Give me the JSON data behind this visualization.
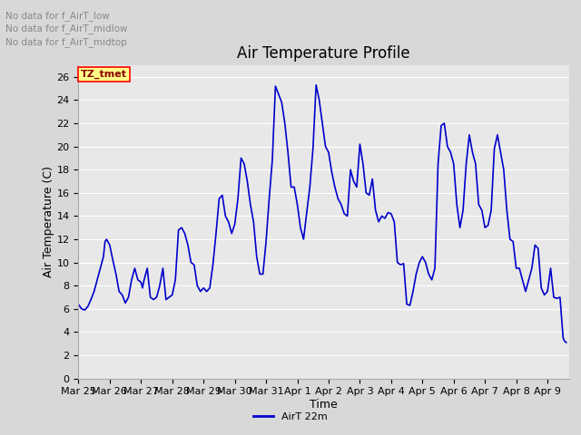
{
  "title": "Air Temperature Profile",
  "xlabel": "Time",
  "ylabel": "Air Temperature (C)",
  "line_color": "#0000cc",
  "line_width": 1.2,
  "background_color": "#d8d8d8",
  "plot_bg_color": "#e8e8e8",
  "ylim": [
    0,
    27
  ],
  "yticks": [
    0,
    2,
    4,
    6,
    8,
    10,
    12,
    14,
    16,
    18,
    20,
    22,
    24,
    26
  ],
  "legend_label": "AirT 22m",
  "legend_text_lines": [
    "No data for f_AirT_low",
    "No data for f_AirT_midlow",
    "No data for f_AirT_midtop"
  ],
  "tz_label": "TZ_tmet",
  "grid_color": "#ffffff",
  "title_fontsize": 12,
  "axis_fontsize": 9,
  "tick_fontsize": 8,
  "data_points": [
    [
      0.0,
      6.4
    ],
    [
      0.1,
      6.0
    ],
    [
      0.2,
      5.9
    ],
    [
      0.3,
      6.2
    ],
    [
      0.4,
      6.8
    ],
    [
      0.5,
      7.5
    ],
    [
      0.6,
      8.5
    ],
    [
      0.7,
      9.5
    ],
    [
      0.8,
      10.5
    ],
    [
      0.85,
      11.8
    ],
    [
      0.9,
      12.0
    ],
    [
      1.0,
      11.5
    ],
    [
      1.1,
      10.2
    ],
    [
      1.2,
      9.0
    ],
    [
      1.3,
      7.5
    ],
    [
      1.4,
      7.2
    ],
    [
      1.5,
      6.5
    ],
    [
      1.6,
      7.0
    ],
    [
      1.7,
      8.5
    ],
    [
      1.8,
      9.5
    ],
    [
      1.9,
      8.5
    ],
    [
      2.0,
      8.3
    ],
    [
      2.05,
      7.8
    ],
    [
      2.1,
      8.5
    ],
    [
      2.2,
      9.5
    ],
    [
      2.3,
      7.0
    ],
    [
      2.4,
      6.8
    ],
    [
      2.5,
      7.0
    ],
    [
      2.6,
      8.0
    ],
    [
      2.7,
      9.5
    ],
    [
      2.8,
      6.8
    ],
    [
      2.9,
      7.0
    ],
    [
      3.0,
      7.2
    ],
    [
      3.1,
      8.5
    ],
    [
      3.2,
      12.8
    ],
    [
      3.3,
      13.0
    ],
    [
      3.4,
      12.5
    ],
    [
      3.5,
      11.5
    ],
    [
      3.6,
      10.0
    ],
    [
      3.7,
      9.8
    ],
    [
      3.8,
      8.0
    ],
    [
      3.9,
      7.5
    ],
    [
      4.0,
      7.8
    ],
    [
      4.1,
      7.5
    ],
    [
      4.2,
      7.8
    ],
    [
      4.3,
      9.8
    ],
    [
      4.4,
      12.5
    ],
    [
      4.5,
      15.5
    ],
    [
      4.6,
      15.8
    ],
    [
      4.7,
      14.0
    ],
    [
      4.8,
      13.5
    ],
    [
      4.9,
      12.5
    ],
    [
      5.0,
      13.3
    ],
    [
      5.1,
      15.5
    ],
    [
      5.2,
      19.0
    ],
    [
      5.3,
      18.5
    ],
    [
      5.4,
      17.0
    ],
    [
      5.5,
      15.0
    ],
    [
      5.6,
      13.5
    ],
    [
      5.7,
      10.5
    ],
    [
      5.8,
      9.0
    ],
    [
      5.9,
      9.0
    ],
    [
      6.0,
      11.8
    ],
    [
      6.1,
      15.5
    ],
    [
      6.2,
      18.8
    ],
    [
      6.3,
      25.2
    ],
    [
      6.4,
      24.5
    ],
    [
      6.5,
      23.8
    ],
    [
      6.6,
      22.0
    ],
    [
      6.7,
      19.5
    ],
    [
      6.8,
      16.5
    ],
    [
      6.9,
      16.5
    ],
    [
      7.0,
      15.0
    ],
    [
      7.1,
      13.0
    ],
    [
      7.2,
      12.0
    ],
    [
      7.3,
      14.3
    ],
    [
      7.4,
      16.5
    ],
    [
      7.5,
      19.8
    ],
    [
      7.6,
      25.3
    ],
    [
      7.7,
      24.0
    ],
    [
      7.8,
      22.0
    ],
    [
      7.9,
      20.0
    ],
    [
      8.0,
      19.5
    ],
    [
      8.1,
      17.8
    ],
    [
      8.2,
      16.5
    ],
    [
      8.3,
      15.5
    ],
    [
      8.4,
      15.0
    ],
    [
      8.5,
      14.2
    ],
    [
      8.6,
      14.0
    ],
    [
      8.7,
      18.0
    ],
    [
      8.8,
      17.0
    ],
    [
      8.9,
      16.5
    ],
    [
      9.0,
      20.2
    ],
    [
      9.1,
      18.5
    ],
    [
      9.2,
      16.0
    ],
    [
      9.3,
      15.8
    ],
    [
      9.4,
      17.2
    ],
    [
      9.5,
      14.5
    ],
    [
      9.6,
      13.5
    ],
    [
      9.7,
      14.0
    ],
    [
      9.8,
      13.8
    ],
    [
      9.9,
      14.3
    ],
    [
      10.0,
      14.2
    ],
    [
      10.1,
      13.5
    ],
    [
      10.2,
      10.0
    ],
    [
      10.3,
      9.8
    ],
    [
      10.4,
      9.9
    ],
    [
      10.5,
      6.4
    ],
    [
      10.6,
      6.3
    ],
    [
      10.7,
      7.5
    ],
    [
      10.8,
      9.0
    ],
    [
      10.9,
      10.0
    ],
    [
      11.0,
      10.5
    ],
    [
      11.1,
      10.0
    ],
    [
      11.2,
      9.0
    ],
    [
      11.3,
      8.5
    ],
    [
      11.4,
      9.5
    ],
    [
      11.5,
      18.5
    ],
    [
      11.6,
      21.8
    ],
    [
      11.7,
      22.0
    ],
    [
      11.8,
      20.0
    ],
    [
      11.9,
      19.5
    ],
    [
      12.0,
      18.5
    ],
    [
      12.1,
      15.0
    ],
    [
      12.2,
      13.0
    ],
    [
      12.3,
      14.5
    ],
    [
      12.4,
      18.5
    ],
    [
      12.5,
      21.0
    ],
    [
      12.6,
      19.5
    ],
    [
      12.7,
      18.5
    ],
    [
      12.8,
      15.0
    ],
    [
      12.9,
      14.5
    ],
    [
      13.0,
      13.0
    ],
    [
      13.1,
      13.2
    ],
    [
      13.2,
      14.5
    ],
    [
      13.3,
      19.8
    ],
    [
      13.4,
      21.0
    ],
    [
      13.5,
      19.5
    ],
    [
      13.6,
      18.0
    ],
    [
      13.7,
      14.5
    ],
    [
      13.8,
      12.0
    ],
    [
      13.9,
      11.8
    ],
    [
      14.0,
      9.5
    ],
    [
      14.1,
      9.5
    ],
    [
      14.2,
      8.5
    ],
    [
      14.3,
      7.5
    ],
    [
      14.4,
      8.5
    ],
    [
      14.5,
      9.5
    ],
    [
      14.6,
      11.5
    ],
    [
      14.7,
      11.2
    ],
    [
      14.8,
      7.8
    ],
    [
      14.9,
      7.2
    ],
    [
      15.0,
      7.5
    ],
    [
      15.1,
      9.5
    ],
    [
      15.2,
      7.0
    ],
    [
      15.3,
      6.9
    ],
    [
      15.4,
      7.0
    ],
    [
      15.5,
      3.5
    ],
    [
      15.55,
      3.2
    ],
    [
      15.6,
      3.1
    ]
  ]
}
